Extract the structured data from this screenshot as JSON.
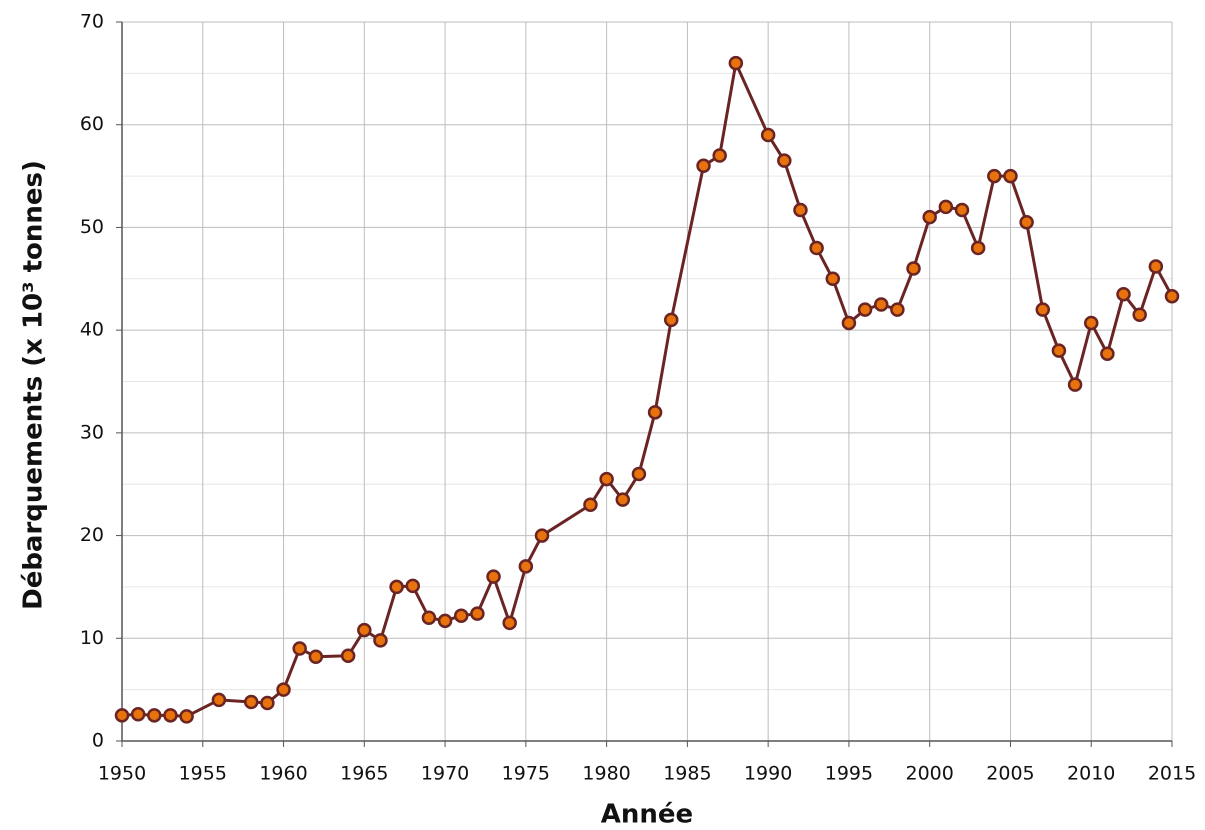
{
  "chart_data": {
    "type": "line",
    "x_label": "Année",
    "y_label": "Débarquements (x 10³ tonnes)",
    "x": [
      1950,
      1951,
      1952,
      1953,
      1954,
      1956,
      1958,
      1959,
      1960,
      1961,
      1962,
      1964,
      1965,
      1966,
      1967,
      1968,
      1969,
      1970,
      1971,
      1972,
      1973,
      1974,
      1975,
      1976,
      1979,
      1980,
      1981,
      1982,
      1983,
      1984,
      1986,
      1987,
      1988,
      1990,
      1991,
      1992,
      1993,
      1994,
      1995,
      1996,
      1997,
      1998,
      1999,
      2000,
      2001,
      2002,
      2003,
      2004,
      2005,
      2006,
      2007,
      2008,
      2009,
      2010,
      2011,
      2012,
      2013,
      2014,
      2015
    ],
    "series": [
      {
        "color": "#6b2424",
        "marker_color": "#e8720c",
        "values": [
          2.5,
          2.6,
          2.5,
          2.5,
          2.4,
          4.0,
          3.8,
          3.7,
          5.0,
          9.0,
          8.2,
          8.3,
          10.8,
          9.8,
          15.0,
          15.1,
          12.0,
          11.7,
          12.2,
          12.4,
          16.0,
          11.5,
          17.0,
          20.0,
          23.0,
          25.5,
          23.5,
          26.0,
          32.0,
          41.0,
          56.0,
          57.0,
          66.0,
          59.0,
          56.5,
          51.7,
          48.0,
          45.0,
          40.7,
          42.0,
          42.5,
          42.0,
          46.0,
          51.0,
          52.0,
          51.7,
          48.0,
          55.0,
          55.0,
          50.5,
          42.0,
          38.0,
          34.7,
          40.7,
          37.7,
          43.5,
          41.5,
          46.2,
          43.3
        ]
      }
    ],
    "xlim": [
      1950,
      2015
    ],
    "xticks": [
      1950,
      1955,
      1960,
      1965,
      1970,
      1975,
      1980,
      1985,
      1990,
      1995,
      2000,
      2005,
      2010,
      2015
    ],
    "ylim": [
      0,
      70
    ],
    "yticks": [
      0,
      10,
      20,
      30,
      40,
      50,
      60,
      70
    ],
    "minor_yticks": [
      5,
      15,
      25,
      35,
      45,
      55,
      65
    ],
    "grid": true
  }
}
